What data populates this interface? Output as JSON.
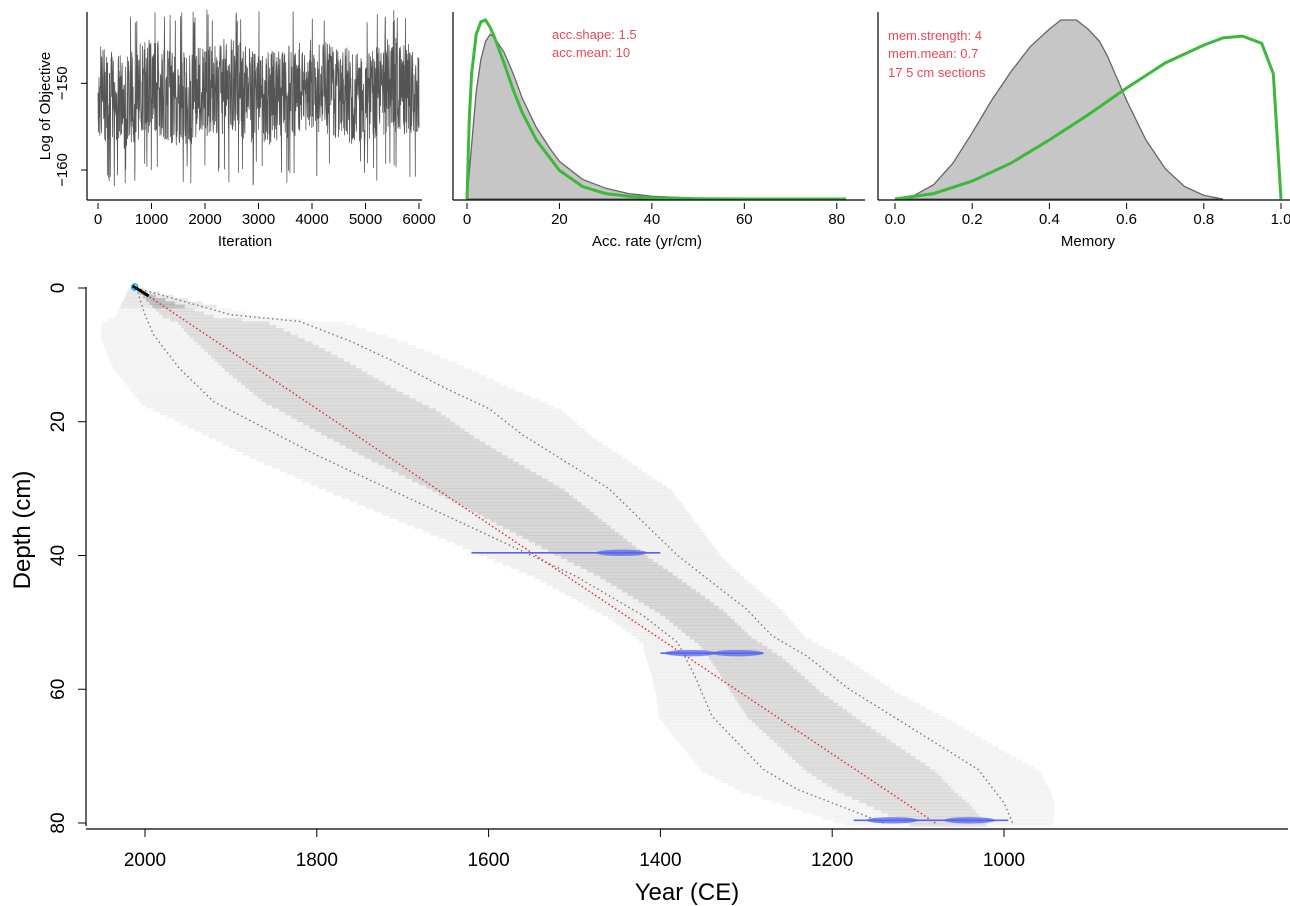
{
  "colors": {
    "trace": "#555555",
    "posterior_fill": "#c6c6c6",
    "posterior_line": "#666666",
    "prior_line": "#3cb83c",
    "annotation_text": "#e8485a",
    "median_line": "#ee2222",
    "range_line": "#777777",
    "date_bar": "#5566ee",
    "top_marker": "#00aaff"
  },
  "chart_data": [
    {
      "type": "line",
      "xlabel": "Iteration",
      "ylabel": "Log of Objective",
      "xticks": [
        "0",
        "1000",
        "2000",
        "3000",
        "4000",
        "5000",
        "6000"
      ],
      "yticks": [
        "−150",
        "−160"
      ],
      "xlim": [
        0,
        6000
      ],
      "ylim": [
        -163,
        -142
      ],
      "series": [
        {
          "x": [
            0,
            500,
            1000,
            1500,
            2000,
            2500,
            3000,
            3500,
            4000,
            4500,
            5000,
            5500,
            6000
          ],
          "y": [
            -151,
            -152,
            -150,
            -152,
            -151,
            -150,
            -152,
            -151,
            -150,
            -151,
            -152,
            -150,
            -151
          ],
          "band": [
            -159,
            -143
          ]
        }
      ]
    },
    {
      "type": "area",
      "xlabel": "Acc. rate (yr/cm)",
      "xticks": [
        "0",
        "20",
        "40",
        "60",
        "80"
      ],
      "xlim": [
        0,
        82
      ],
      "ylim": [
        0,
        1
      ],
      "annotations": [
        "acc.shape:  1.5",
        "acc.mean:  10"
      ],
      "series": [
        {
          "x": [
            0,
            1,
            2,
            3,
            4,
            5,
            6,
            8,
            10,
            12,
            15,
            18,
            20,
            25,
            30,
            35,
            40,
            50,
            60,
            70,
            82
          ],
          "y": [
            0,
            0.3,
            0.6,
            0.78,
            0.88,
            0.92,
            0.9,
            0.82,
            0.7,
            0.56,
            0.4,
            0.28,
            0.21,
            0.11,
            0.06,
            0.03,
            0.015,
            0.004,
            0.001,
            0,
            0
          ]
        },
        {
          "x": [
            0,
            0.5,
            1,
            2,
            3,
            4,
            5,
            6,
            8,
            10,
            12,
            15,
            20,
            25,
            30,
            35,
            40,
            50,
            60,
            82
          ],
          "y": [
            0,
            0.45,
            0.7,
            0.92,
            0.99,
            1.0,
            0.96,
            0.9,
            0.76,
            0.61,
            0.48,
            0.33,
            0.16,
            0.07,
            0.03,
            0.015,
            0.006,
            0.001,
            0,
            0
          ]
        }
      ]
    },
    {
      "type": "area",
      "xlabel": "Memory",
      "xticks": [
        "0.0",
        "0.2",
        "0.4",
        "0.6",
        "0.8",
        "1.0"
      ],
      "xlim": [
        0,
        1.0
      ],
      "ylim": [
        0,
        1
      ],
      "annotations": [
        "mem.strength: 4",
        "mem.mean: 0.7",
        "17 5 cm sections"
      ],
      "series": [
        {
          "x": [
            0,
            0.05,
            0.1,
            0.15,
            0.2,
            0.25,
            0.3,
            0.35,
            0.4,
            0.43,
            0.45,
            0.47,
            0.5,
            0.53,
            0.55,
            0.6,
            0.65,
            0.7,
            0.75,
            0.8,
            0.85
          ],
          "y": [
            0,
            0.02,
            0.08,
            0.2,
            0.37,
            0.55,
            0.71,
            0.85,
            0.95,
            1.0,
            1.0,
            1.0,
            0.95,
            0.88,
            0.8,
            0.55,
            0.33,
            0.17,
            0.07,
            0.02,
            0
          ]
        },
        {
          "x": [
            0,
            0.1,
            0.2,
            0.3,
            0.4,
            0.5,
            0.6,
            0.7,
            0.8,
            0.85,
            0.9,
            0.95,
            0.98,
            1.0
          ],
          "y": [
            0,
            0.03,
            0.1,
            0.2,
            0.33,
            0.47,
            0.62,
            0.76,
            0.86,
            0.9,
            0.91,
            0.87,
            0.7,
            0
          ]
        }
      ]
    },
    {
      "type": "line",
      "xlabel": "Year (CE)",
      "ylabel": "Depth (cm)",
      "xticks": [
        "2000",
        "1800",
        "1600",
        "1400",
        "1200",
        "1000"
      ],
      "yticks": [
        "0",
        "20",
        "40",
        "60",
        "80"
      ],
      "xlim": [
        2063,
        925
      ],
      "ylim": [
        0,
        81
      ],
      "median": {
        "year": [
          2010,
          1080
        ],
        "depth": [
          0,
          80
        ]
      },
      "range_upper": {
        "year": [
          2010,
          1955,
          1900,
          1820,
          1760,
          1710,
          1650,
          1600,
          1560,
          1510,
          1460,
          1420,
          1380,
          1340,
          1300,
          1270,
          1230,
          1180,
          1130,
          1080,
          1030,
          1000,
          990
        ],
        "depth": [
          0,
          2,
          4,
          5,
          8,
          11,
          15,
          18,
          22,
          26,
          30,
          35,
          40,
          44,
          48,
          52,
          55,
          60,
          64,
          68,
          72,
          77,
          80
        ]
      },
      "range_lower": {
        "year": [
          2010,
          2000,
          1990,
          1960,
          1920,
          1860,
          1800,
          1750,
          1700,
          1650,
          1600,
          1550,
          1500,
          1460,
          1420,
          1380,
          1360,
          1340,
          1310,
          1280,
          1240,
          1200,
          1160,
          1140
        ],
        "depth": [
          0,
          4,
          7,
          12,
          17,
          21,
          25,
          28,
          31,
          34,
          37,
          40,
          43,
          46,
          49,
          53,
          58,
          64,
          68,
          72,
          75,
          77,
          79,
          80
        ]
      },
      "dates": [
        {
          "depth": 39.6,
          "from": 1620,
          "to": 1400,
          "peaks": [
            1445
          ]
        },
        {
          "depth": 54.6,
          "from": 1400,
          "to": 1280,
          "peaks": [
            1365,
            1310
          ]
        },
        {
          "depth": 79.6,
          "from": 1175,
          "to": 995,
          "peaks": [
            1130,
            1040
          ]
        }
      ],
      "top_marker": {
        "year": 2012,
        "depth": 0
      }
    }
  ]
}
